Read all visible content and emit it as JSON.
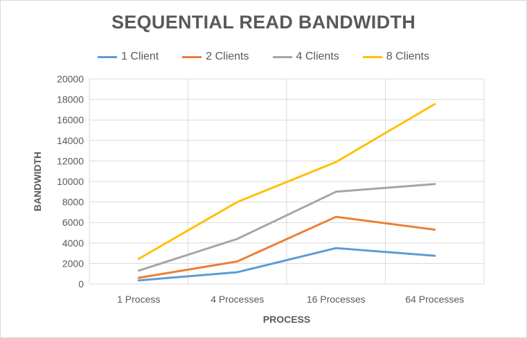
{
  "chart_data": {
    "type": "line",
    "title": "SEQUENTIAL READ BANDWIDTH",
    "xlabel": "PROCESS",
    "ylabel": "BANDWIDTH",
    "categories": [
      "1 Process",
      "4 Processes",
      "16 Processes",
      "64 Processes"
    ],
    "ylim": [
      0,
      20000
    ],
    "yticks": [
      0,
      2000,
      4000,
      6000,
      8000,
      10000,
      12000,
      14000,
      16000,
      18000,
      20000
    ],
    "grid": true,
    "legend_position": "top",
    "series": [
      {
        "name": "1 Client",
        "color": "#5b9bd5",
        "values": [
          350,
          1150,
          3500,
          2750
        ]
      },
      {
        "name": "2 Clients",
        "color": "#ed7d31",
        "values": [
          600,
          2200,
          6550,
          5300
        ]
      },
      {
        "name": "4 Clients",
        "color": "#a5a5a5",
        "values": [
          1300,
          4400,
          9000,
          9750
        ]
      },
      {
        "name": "8 Clients",
        "color": "#ffc000",
        "values": [
          2450,
          8000,
          11900,
          17550
        ]
      }
    ]
  }
}
